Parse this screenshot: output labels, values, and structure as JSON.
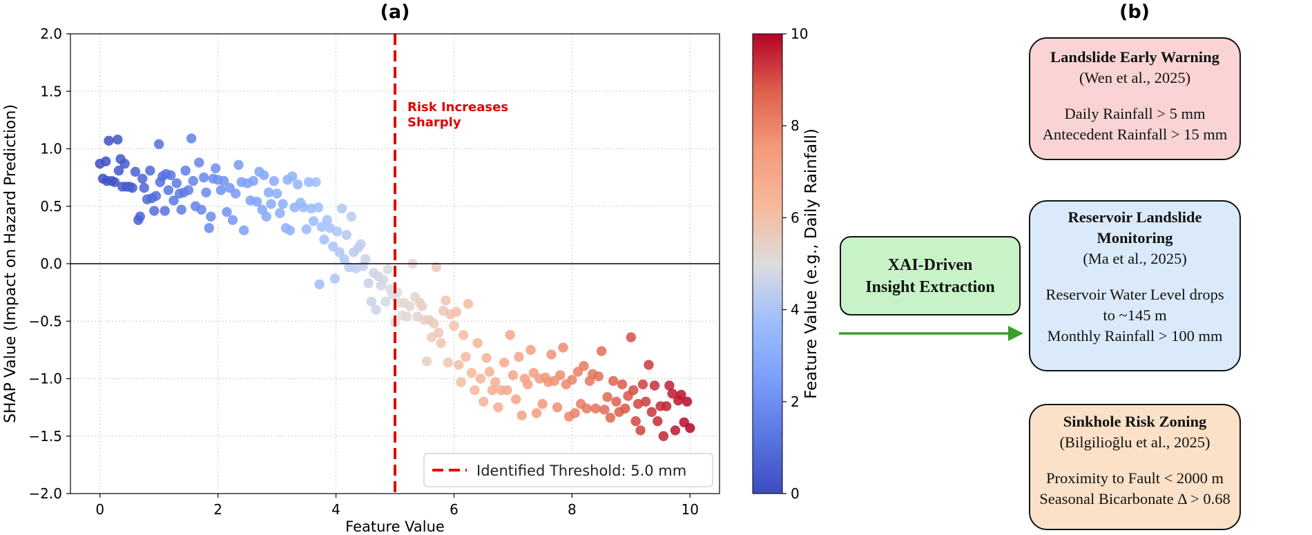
{
  "panel_a": {
    "title": "(a)",
    "annotation": [
      "Risk Increases",
      "Sharply"
    ],
    "legend_label": "Identified Threshold: 5.0 mm",
    "colorbar_label": "Feature Value (e.g., Daily Rainfall)",
    "colorbar_ticks": [
      "0",
      "2",
      "4",
      "6",
      "8",
      "10"
    ]
  },
  "panel_b": {
    "title": "(b)",
    "xai_box": [
      "XAI-Driven",
      "Insight Extraction"
    ],
    "cards": [
      {
        "title": [
          "Landslide Early Warning"
        ],
        "ref": "(Wen et al., 2025)",
        "criteria": [
          "Daily Rainfall > 5 mm",
          "Antecedent Rainfall > 15 mm"
        ],
        "color": "#fad4d4"
      },
      {
        "title": [
          "Reservoir Landslide",
          "Monitoring"
        ],
        "ref": "(Ma et al., 2025)",
        "criteria": [
          "Reservoir Water Level drops",
          "to ~145 m",
          "Monthly Rainfall > 100 mm"
        ],
        "color": "#dbeafb"
      },
      {
        "title": [
          "Sinkhole Risk Zoning"
        ],
        "ref": "(Bilgilioğlu et al., 2025)",
        "criteria": [
          "Proximity to Fault < 2000 m",
          "Seasonal Bicarbonate Δ > 0.68"
        ],
        "color": "#fbe1c8"
      }
    ],
    "arrow_color": "#3a9e2a"
  },
  "chart_data": {
    "type": "scatter",
    "title": "(a)",
    "xlabel": "Feature Value",
    "ylabel": "SHAP Value (Impact on Hazard Prediction)",
    "xlim": [
      -0.5,
      10.5
    ],
    "ylim": [
      -2.0,
      2.0
    ],
    "xticks": [
      "0",
      "2",
      "4",
      "6",
      "8",
      "10"
    ],
    "yticks": [
      "−2.0",
      "−1.5",
      "−1.0",
      "−0.5",
      "0.0",
      "0.5",
      "1.0",
      "1.5",
      "2.0"
    ],
    "grid": true,
    "threshold": 5.0,
    "threshold_color": "#e00000",
    "legend_position": "lower-right",
    "colormap": "coolwarm",
    "color_range": [
      0,
      10
    ],
    "points": [
      [
        0.0,
        0.87
      ],
      [
        0.05,
        0.74
      ],
      [
        0.1,
        0.89
      ],
      [
        0.12,
        0.72
      ],
      [
        0.15,
        1.07
      ],
      [
        0.2,
        0.72
      ],
      [
        0.25,
        0.71
      ],
      [
        0.3,
        1.08
      ],
      [
        0.32,
        0.81
      ],
      [
        0.35,
        0.91
      ],
      [
        0.38,
        0.67
      ],
      [
        0.42,
        0.87
      ],
      [
        0.45,
        0.67
      ],
      [
        0.5,
        0.67
      ],
      [
        0.55,
        0.66
      ],
      [
        0.6,
        0.8
      ],
      [
        0.65,
        0.38
      ],
      [
        0.68,
        0.41
      ],
      [
        0.72,
        0.74
      ],
      [
        0.75,
        0.66
      ],
      [
        0.8,
        0.56
      ],
      [
        0.85,
        0.81
      ],
      [
        0.88,
        0.57
      ],
      [
        0.92,
        0.46
      ],
      [
        0.95,
        0.59
      ],
      [
        1.0,
        1.04
      ],
      [
        1.02,
        0.71
      ],
      [
        1.06,
        0.76
      ],
      [
        1.1,
        0.46
      ],
      [
        1.12,
        0.78
      ],
      [
        1.16,
        0.64
      ],
      [
        1.2,
        0.77
      ],
      [
        1.25,
        0.55
      ],
      [
        1.3,
        0.7
      ],
      [
        1.35,
        0.61
      ],
      [
        1.38,
        0.47
      ],
      [
        1.42,
        0.62
      ],
      [
        1.45,
        0.81
      ],
      [
        1.5,
        0.64
      ],
      [
        1.55,
        1.09
      ],
      [
        1.58,
        0.72
      ],
      [
        1.62,
        0.5
      ],
      [
        1.68,
        0.88
      ],
      [
        1.72,
        0.47
      ],
      [
        1.76,
        0.75
      ],
      [
        1.8,
        0.62
      ],
      [
        1.85,
        0.31
      ],
      [
        1.88,
        0.41
      ],
      [
        1.92,
        0.74
      ],
      [
        1.96,
        0.83
      ],
      [
        2.0,
        0.73
      ],
      [
        2.05,
        0.64
      ],
      [
        2.1,
        0.72
      ],
      [
        2.15,
        0.45
      ],
      [
        2.2,
        0.66
      ],
      [
        2.25,
        0.38
      ],
      [
        2.3,
        0.61
      ],
      [
        2.35,
        0.86
      ],
      [
        2.4,
        0.71
      ],
      [
        2.44,
        0.29
      ],
      [
        2.5,
        0.7
      ],
      [
        2.55,
        0.55
      ],
      [
        2.6,
        0.72
      ],
      [
        2.66,
        0.54
      ],
      [
        2.7,
        0.8
      ],
      [
        2.75,
        0.47
      ],
      [
        2.78,
        0.77
      ],
      [
        2.82,
        0.41
      ],
      [
        2.86,
        0.62
      ],
      [
        2.9,
        0.52
      ],
      [
        2.95,
        0.72
      ],
      [
        3.0,
        0.61
      ],
      [
        3.05,
        0.44
      ],
      [
        3.1,
        0.52
      ],
      [
        3.15,
        0.31
      ],
      [
        3.18,
        0.73
      ],
      [
        3.22,
        0.29
      ],
      [
        3.26,
        0.76
      ],
      [
        3.3,
        0.49
      ],
      [
        3.35,
        0.69
      ],
      [
        3.4,
        0.53
      ],
      [
        3.45,
        0.49
      ],
      [
        3.5,
        0.3
      ],
      [
        3.54,
        0.71
      ],
      [
        3.58,
        0.48
      ],
      [
        3.62,
        0.37
      ],
      [
        3.66,
        0.71
      ],
      [
        3.7,
        0.49
      ],
      [
        3.72,
        -0.18
      ],
      [
        3.76,
        0.32
      ],
      [
        3.8,
        0.21
      ],
      [
        3.85,
        0.38
      ],
      [
        3.9,
        0.31
      ],
      [
        3.95,
        0.15
      ],
      [
        3.98,
        -0.13
      ],
      [
        4.02,
        0.28
      ],
      [
        4.06,
        0.1
      ],
      [
        4.1,
        0.48
      ],
      [
        4.14,
        0.04
      ],
      [
        4.18,
        0.25
      ],
      [
        4.22,
        -0.03
      ],
      [
        4.26,
        0.41
      ],
      [
        4.3,
        0.1
      ],
      [
        4.34,
        -0.04
      ],
      [
        4.38,
        0.14
      ],
      [
        4.42,
        0.17
      ],
      [
        4.46,
        -0.02
      ],
      [
        4.5,
        0.04
      ],
      [
        4.55,
        -0.17
      ],
      [
        4.6,
        -0.33
      ],
      [
        4.64,
        -0.08
      ],
      [
        4.68,
        -0.4
      ],
      [
        4.72,
        -0.11
      ],
      [
        4.76,
        -0.19
      ],
      [
        4.8,
        -0.14
      ],
      [
        4.84,
        -0.33
      ],
      [
        4.88,
        -0.05
      ],
      [
        4.92,
        -0.22
      ],
      [
        4.96,
        -0.27
      ],
      [
        5.0,
        -0.51
      ],
      [
        5.04,
        -0.25
      ],
      [
        5.08,
        -0.34
      ],
      [
        5.12,
        -0.45
      ],
      [
        5.16,
        -0.34
      ],
      [
        5.2,
        -0.46
      ],
      [
        5.25,
        -0.37
      ],
      [
        5.3,
        0.0
      ],
      [
        5.34,
        -0.29
      ],
      [
        5.38,
        -0.46
      ],
      [
        5.42,
        -0.34
      ],
      [
        5.46,
        -0.37
      ],
      [
        5.5,
        -0.49
      ],
      [
        5.54,
        -0.85
      ],
      [
        5.58,
        -0.49
      ],
      [
        5.62,
        -0.64
      ],
      [
        5.66,
        -0.52
      ],
      [
        5.7,
        -0.03
      ],
      [
        5.74,
        -0.6
      ],
      [
        5.78,
        -0.69
      ],
      [
        5.82,
        -0.41
      ],
      [
        5.86,
        -0.32
      ],
      [
        5.9,
        -0.86
      ],
      [
        5.94,
        -0.44
      ],
      [
        6.0,
        -0.54
      ],
      [
        6.04,
        -0.42
      ],
      [
        6.08,
        -0.88
      ],
      [
        6.12,
        -1.03
      ],
      [
        6.16,
        -0.62
      ],
      [
        6.2,
        -0.81
      ],
      [
        6.24,
        -0.35
      ],
      [
        6.3,
        -0.95
      ],
      [
        6.35,
        -1.1
      ],
      [
        6.4,
        -0.69
      ],
      [
        6.45,
        -1.0
      ],
      [
        6.5,
        -1.2
      ],
      [
        6.55,
        -0.82
      ],
      [
        6.6,
        -0.94
      ],
      [
        6.65,
        -1.1
      ],
      [
        6.7,
        -1.03
      ],
      [
        6.75,
        -1.25
      ],
      [
        6.8,
        -1.1
      ],
      [
        6.85,
        -0.86
      ],
      [
        6.9,
        -1.1
      ],
      [
        6.95,
        -0.62
      ],
      [
        7.0,
        -0.97
      ],
      [
        7.05,
        -1.18
      ],
      [
        7.1,
        -0.81
      ],
      [
        7.15,
        -1.32
      ],
      [
        7.2,
        -1.0
      ],
      [
        7.25,
        -1.05
      ],
      [
        7.3,
        -0.75
      ],
      [
        7.35,
        -0.95
      ],
      [
        7.4,
        -1.3
      ],
      [
        7.45,
        -1.0
      ],
      [
        7.5,
        -1.22
      ],
      [
        7.55,
        -0.99
      ],
      [
        7.6,
        -1.03
      ],
      [
        7.65,
        -0.79
      ],
      [
        7.7,
        -1.02
      ],
      [
        7.75,
        -1.25
      ],
      [
        7.8,
        -0.97
      ],
      [
        7.85,
        -0.73
      ],
      [
        7.9,
        -1.05
      ],
      [
        7.95,
        -1.33
      ],
      [
        8.0,
        -1.01
      ],
      [
        8.05,
        -1.3
      ],
      [
        8.1,
        -0.94
      ],
      [
        8.15,
        -1.22
      ],
      [
        8.2,
        -0.89
      ],
      [
        8.25,
        -1.26
      ],
      [
        8.3,
        -1.02
      ],
      [
        8.35,
        -0.96
      ],
      [
        8.4,
        -1.26
      ],
      [
        8.45,
        -0.98
      ],
      [
        8.5,
        -0.76
      ],
      [
        8.55,
        -1.27
      ],
      [
        8.6,
        -1.16
      ],
      [
        8.65,
        -1.34
      ],
      [
        8.7,
        -1.02
      ],
      [
        8.75,
        -1.2
      ],
      [
        8.8,
        -1.29
      ],
      [
        8.85,
        -1.05
      ],
      [
        8.9,
        -1.26
      ],
      [
        8.95,
        -1.15
      ],
      [
        9.0,
        -0.64
      ],
      [
        9.04,
        -1.1
      ],
      [
        9.08,
        -1.37
      ],
      [
        9.12,
        -1.22
      ],
      [
        9.16,
        -1.45
      ],
      [
        9.2,
        -1.05
      ],
      [
        9.25,
        -1.2
      ],
      [
        9.3,
        -0.88
      ],
      [
        9.35,
        -1.29
      ],
      [
        9.4,
        -1.06
      ],
      [
        9.45,
        -1.37
      ],
      [
        9.5,
        -1.24
      ],
      [
        9.55,
        -1.5
      ],
      [
        9.6,
        -1.24
      ],
      [
        9.65,
        -1.06
      ],
      [
        9.7,
        -1.13
      ],
      [
        9.75,
        -1.45
      ],
      [
        9.8,
        -1.19
      ],
      [
        9.85,
        -1.14
      ],
      [
        9.9,
        -1.38
      ],
      [
        9.95,
        -1.2
      ],
      [
        10.0,
        -1.43
      ]
    ]
  }
}
